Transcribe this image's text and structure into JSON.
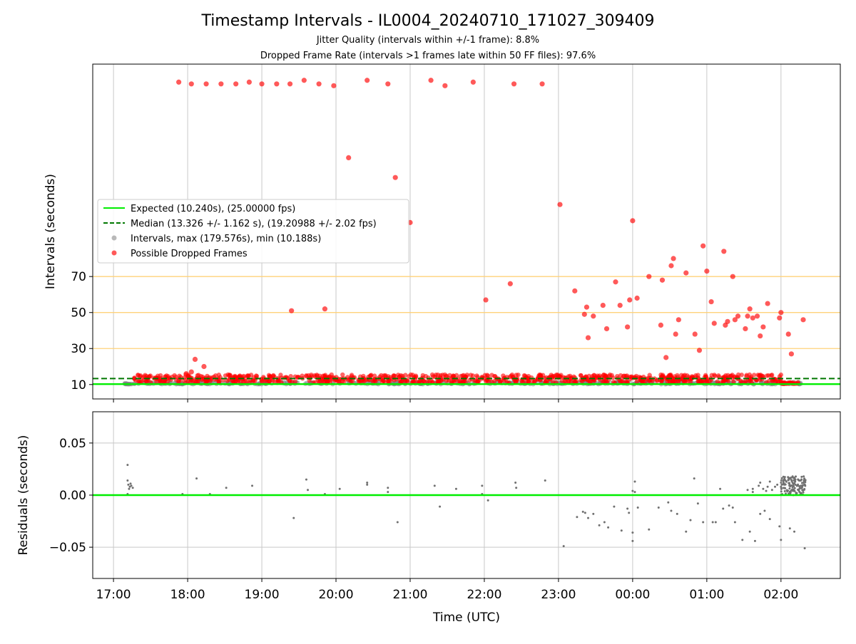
{
  "title": "Timestamp Intervals - IL0004_20240710_171027_309409",
  "subtitle1": "Jitter Quality (intervals within +/-1 frame): 8.8%",
  "subtitle2": "Dropped Frame Rate (intervals >1 frames late within 50 FF files): 97.6%",
  "colors": {
    "expected": "#00ee00",
    "median": "#007700",
    "intervals": "#808080",
    "dropped": "#ff0000",
    "threshold": "#ffd27a",
    "grid": "#c8c8c8"
  },
  "chart_data": [
    {
      "type": "scatter",
      "panel": "intervals",
      "ylabel": "Intervals (seconds)",
      "xlabel": "",
      "x_unit": "hours since 17:00 UTC on 2024-07-10",
      "xlim": [
        -0.28,
        9.8
      ],
      "ylim": [
        2,
        188
      ],
      "y_tick_values": [
        10,
        30,
        50,
        70
      ],
      "y_tick_labels": [
        "10",
        "30",
        "50",
        "70"
      ],
      "threshold_lines": [
        30,
        50,
        70
      ],
      "grid": "vertical",
      "legend_position": "center-left",
      "legend": [
        {
          "key": "expected",
          "label": "Expected (10.240s), (25.00000 fps)"
        },
        {
          "key": "median",
          "label": "Median (13.326 +/- 1.162 s), (19.20988 +/- 2.02 fps)"
        },
        {
          "key": "intervals",
          "label": "Intervals, max (179.576s), min (10.188s)"
        },
        {
          "key": "dropped",
          "label": "Possible Dropped Frames"
        }
      ],
      "expected": 10.24,
      "median": 13.326,
      "series": [
        {
          "name": "Possible Dropped Frames",
          "points": [
            [
              0.88,
              178
            ],
            [
              1.05,
              177
            ],
            [
              1.25,
              177
            ],
            [
              1.45,
              177
            ],
            [
              1.65,
              177
            ],
            [
              1.83,
              178
            ],
            [
              2.0,
              177
            ],
            [
              2.2,
              177
            ],
            [
              2.38,
              177
            ],
            [
              2.57,
              179
            ],
            [
              2.77,
              177
            ],
            [
              2.97,
              176
            ],
            [
              3.42,
              179
            ],
            [
              3.7,
              177
            ],
            [
              4.28,
              179
            ],
            [
              4.47,
              176
            ],
            [
              4.85,
              178
            ],
            [
              5.4,
              177
            ],
            [
              5.78,
              177
            ],
            [
              3.17,
              136
            ],
            [
              3.8,
              125
            ],
            [
              4.0,
              100
            ],
            [
              6.02,
              110
            ],
            [
              7.0,
              101
            ],
            [
              7.95,
              87
            ],
            [
              7.55,
              80
            ],
            [
              8.0,
              73
            ],
            [
              8.23,
              84
            ],
            [
              8.35,
              70
            ],
            [
              8.42,
              48
            ],
            [
              7.4,
              68
            ],
            [
              5.35,
              66
            ],
            [
              2.4,
              51
            ],
            [
              2.85,
              52
            ],
            [
              1.1,
              24
            ],
            [
              1.22,
              20
            ],
            [
              1.05,
              17
            ],
            [
              0.98,
              16
            ],
            [
              5.02,
              57
            ],
            [
              6.22,
              62
            ],
            [
              6.35,
              49
            ],
            [
              6.38,
              53
            ],
            [
              6.4,
              36
            ],
            [
              6.47,
              48
            ],
            [
              6.6,
              54
            ],
            [
              6.65,
              41
            ],
            [
              6.77,
              67
            ],
            [
              6.83,
              54
            ],
            [
              6.93,
              42
            ],
            [
              6.96,
              57
            ],
            [
              7.06,
              58
            ],
            [
              7.22,
              70
            ],
            [
              7.38,
              43
            ],
            [
              7.45,
              25
            ],
            [
              7.52,
              76
            ],
            [
              7.58,
              38
            ],
            [
              7.62,
              46
            ],
            [
              7.72,
              72
            ],
            [
              7.84,
              38
            ],
            [
              7.9,
              29
            ],
            [
              8.06,
              56
            ],
            [
              8.1,
              44
            ],
            [
              8.25,
              43
            ],
            [
              8.28,
              45
            ],
            [
              8.38,
              46
            ],
            [
              8.52,
              41
            ],
            [
              8.55,
              48
            ],
            [
              8.58,
              52
            ],
            [
              8.62,
              47
            ],
            [
              8.68,
              48
            ],
            [
              8.72,
              37
            ],
            [
              8.76,
              42
            ],
            [
              8.82,
              55
            ],
            [
              8.98,
              47
            ],
            [
              9.0,
              50
            ],
            [
              9.1,
              38
            ],
            [
              9.14,
              27
            ],
            [
              9.3,
              46
            ]
          ]
        }
      ]
    },
    {
      "type": "scatter",
      "panel": "residuals",
      "ylabel": "Residuals (seconds)",
      "xlabel": "Time (UTC)",
      "x_unit": "hours since 17:00 UTC on 2024-07-10",
      "xlim": [
        -0.28,
        9.8
      ],
      "ylim": [
        -0.08,
        0.08
      ],
      "y_tick_values": [
        -0.05,
        0,
        0.05
      ],
      "y_tick_labels": [
        "−0.05",
        "0.00",
        "0.05"
      ],
      "grid": "both",
      "x_tick_values": [
        0,
        1,
        2,
        3,
        4,
        5,
        6,
        7,
        8,
        9
      ],
      "x_tick_labels": [
        "17:00",
        "18:00",
        "19:00",
        "20:00",
        "21:00",
        "22:00",
        "23:00",
        "00:00",
        "01:00",
        "02:00"
      ],
      "reference_line": 0,
      "series": [
        {
          "name": "Intervals",
          "points": [
            [
              0.19,
              0.029
            ],
            [
              0.19,
              0.014
            ],
            [
              0.2,
              0.01
            ],
            [
              0.22,
              0.008
            ],
            [
              0.24,
              0.009
            ],
            [
              0.26,
              0.007
            ],
            [
              0.21,
              0.006
            ],
            [
              0.19,
              0.001
            ],
            [
              0.23,
              0.011
            ],
            [
              0.93,
              0.001
            ],
            [
              1.12,
              0.016
            ],
            [
              1.3,
              0.001
            ],
            [
              1.52,
              0.007
            ],
            [
              1.87,
              0.009
            ],
            [
              2.43,
              -0.022
            ],
            [
              2.6,
              0.015
            ],
            [
              2.62,
              0.005
            ],
            [
              2.85,
              0.001
            ],
            [
              3.05,
              0.006
            ],
            [
              3.42,
              0.012
            ],
            [
              3.42,
              0.01
            ],
            [
              3.7,
              0.007
            ],
            [
              3.7,
              0.003
            ],
            [
              3.83,
              -0.026
            ],
            [
              4.33,
              0.009
            ],
            [
              4.4,
              -0.011
            ],
            [
              4.62,
              0.006
            ],
            [
              4.97,
              0.009
            ],
            [
              4.97,
              0.001
            ],
            [
              5.05,
              -0.005
            ],
            [
              5.42,
              0.012
            ],
            [
              5.43,
              0.007
            ],
            [
              5.82,
              0.014
            ],
            [
              6.07,
              -0.049
            ],
            [
              6.25,
              -0.021
            ],
            [
              6.33,
              -0.016
            ],
            [
              6.36,
              -0.017
            ],
            [
              6.4,
              -0.022
            ],
            [
              6.47,
              -0.018
            ],
            [
              6.55,
              -0.029
            ],
            [
              6.62,
              -0.026
            ],
            [
              6.67,
              -0.031
            ],
            [
              6.75,
              -0.011
            ],
            [
              6.85,
              -0.034
            ],
            [
              6.93,
              -0.013
            ],
            [
              6.95,
              -0.017
            ],
            [
              7.0,
              0.004
            ],
            [
              7.03,
              0.013
            ],
            [
              7.03,
              0.003
            ],
            [
              7.0,
              -0.036
            ],
            [
              7.0,
              -0.044
            ],
            [
              7.07,
              -0.012
            ],
            [
              7.22,
              -0.033
            ],
            [
              7.35,
              -0.012
            ],
            [
              7.48,
              -0.007
            ],
            [
              7.52,
              -0.015
            ],
            [
              7.6,
              -0.018
            ],
            [
              7.72,
              -0.035
            ],
            [
              7.78,
              -0.024
            ],
            [
              7.83,
              0.016
            ],
            [
              7.88,
              -0.008
            ],
            [
              7.95,
              -0.026
            ],
            [
              8.08,
              -0.026
            ],
            [
              8.12,
              -0.026
            ],
            [
              8.18,
              0.006
            ],
            [
              8.22,
              -0.013
            ],
            [
              8.3,
              -0.01
            ],
            [
              8.35,
              -0.012
            ],
            [
              8.38,
              -0.026
            ],
            [
              8.48,
              -0.043
            ],
            [
              8.55,
              0.005
            ],
            [
              8.58,
              -0.035
            ],
            [
              8.62,
              0.006
            ],
            [
              8.65,
              -0.044
            ],
            [
              8.72,
              0.012
            ],
            [
              8.72,
              -0.018
            ],
            [
              8.78,
              -0.015
            ],
            [
              8.82,
              0.008
            ],
            [
              8.85,
              -0.023
            ],
            [
              8.98,
              -0.03
            ],
            [
              9.0,
              -0.043
            ],
            [
              9.12,
              -0.032
            ],
            [
              9.18,
              -0.035
            ],
            [
              9.32,
              -0.051
            ],
            [
              8.62,
              0.003
            ],
            [
              8.7,
              0.009
            ],
            [
              8.76,
              0.006
            ],
            [
              8.8,
              0.004
            ],
            [
              8.85,
              0.013
            ],
            [
              8.88,
              0.005
            ],
            [
              8.92,
              0.008
            ],
            [
              8.95,
              0.01
            ]
          ]
        }
      ]
    }
  ]
}
